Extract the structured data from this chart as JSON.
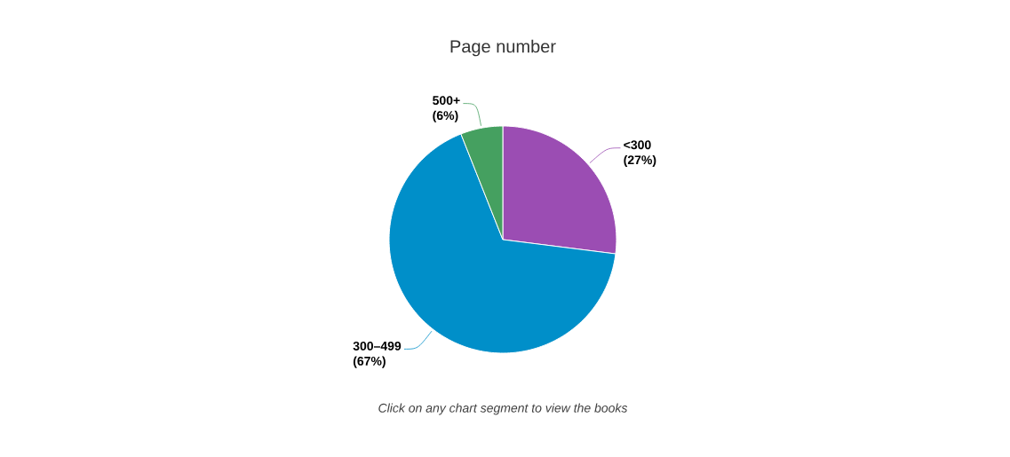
{
  "chart_data": {
    "type": "pie",
    "title": "Page number",
    "categories": [
      "<300",
      "300–499",
      "500+"
    ],
    "values": [
      27,
      67,
      6
    ],
    "value_labels": [
      "(27%)",
      "(67%)",
      "(6%)"
    ],
    "colors": [
      "#9b4db3",
      "#008fc9",
      "#45a060"
    ],
    "annotations": [
      "Click on any chart segment to view the books"
    ]
  }
}
